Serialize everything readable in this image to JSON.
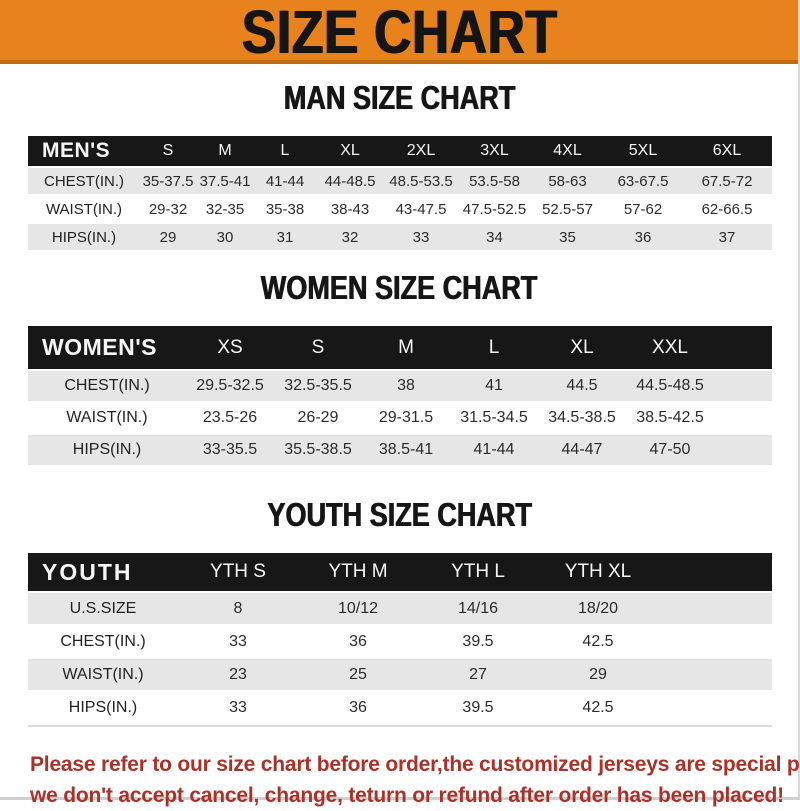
{
  "banner": {
    "title": "SIZE CHART"
  },
  "sections": [
    {
      "heading": "MAN SIZE CHART",
      "table": {
        "label": "MEN'S",
        "columns": [
          "S",
          "M",
          "L",
          "XL",
          "2XL",
          "3XL",
          "4XL",
          "5XL",
          "6XL"
        ],
        "rows": [
          {
            "label": "CHEST(IN.)",
            "values": [
              "35-37.5",
              "37.5-41",
              "41-44",
              "44-48.5",
              "48.5-53.5",
              "53.5-58",
              "58-63",
              "63-67.5",
              "67.5-72"
            ]
          },
          {
            "label": "WAIST(IN.)",
            "values": [
              "29-32",
              "32-35",
              "35-38",
              "38-43",
              "43-47.5",
              "47.5-52.5",
              "52.5-57",
              "57-62",
              "62-66.5"
            ]
          },
          {
            "label": "HIPS(IN.)",
            "values": [
              "29",
              "30",
              "31",
              "32",
              "33",
              "34",
              "35",
              "36",
              "37"
            ]
          }
        ]
      }
    },
    {
      "heading": "WOMEN SIZE CHART",
      "table": {
        "label": "WOMEN'S",
        "columns": [
          "XS",
          "S",
          "M",
          "L",
          "XL",
          "XXL"
        ],
        "rows": [
          {
            "label": "CHEST(IN.)",
            "values": [
              "29.5-32.5",
              "32.5-35.5",
              "38",
              "41",
              "44.5",
              "44.5-48.5"
            ]
          },
          {
            "label": "WAIST(IN.)",
            "values": [
              "23.5-26",
              "26-29",
              "29-31.5",
              "31.5-34.5",
              "34.5-38.5",
              "38.5-42.5"
            ]
          },
          {
            "label": "HIPS(IN.)",
            "values": [
              "33-35.5",
              "35.5-38.5",
              "38.5-41",
              "41-44",
              "44-47",
              "47-50"
            ]
          }
        ]
      }
    },
    {
      "heading": "YOUTH SIZE CHART",
      "table": {
        "label": "YOUTH",
        "columns": [
          "YTH S",
          "YTH M",
          "YTH L",
          "YTH XL"
        ],
        "rows": [
          {
            "label": "U.S.SIZE",
            "values": [
              "8",
              "10/12",
              "14/16",
              "18/20"
            ]
          },
          {
            "label": "CHEST(IN.)",
            "values": [
              "33",
              "36",
              "39.5",
              "42.5"
            ]
          },
          {
            "label": "WAIST(IN.)",
            "values": [
              "23",
              "25",
              "27",
              "29"
            ]
          },
          {
            "label": "HIPS(IN.)",
            "values": [
              "33",
              "36",
              "39.5",
              "42.5"
            ]
          }
        ]
      }
    }
  ],
  "footer": {
    "line1": "Please refer to our size chart before order,the customized jerseys are special products,",
    "line2": "we don't accept cancel, change, teturn or refund after order has been placed!"
  },
  "colors": {
    "banner_orange": "#E8821C",
    "banner_orange_dark": "#BF6C10",
    "header_black": "#171717",
    "row_gray": "#E6E6E6",
    "footer_red": "#A93129"
  }
}
